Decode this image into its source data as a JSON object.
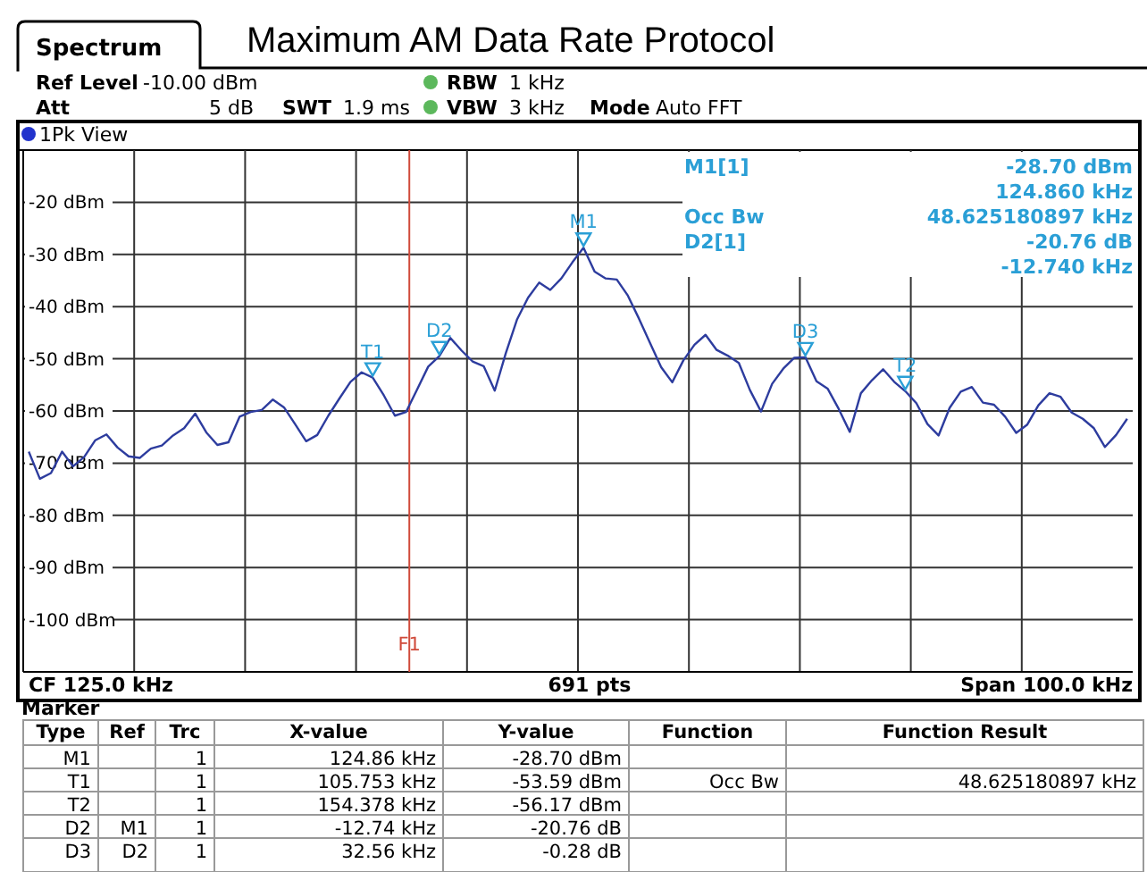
{
  "chart_data": {
    "type": "line",
    "title": "Maximum AM Data Rate Protocol",
    "categories": [
      null,
      null,
      null,
      null,
      null,
      null,
      null,
      null,
      null,
      null,
      null,
      null,
      null,
      null,
      null,
      null,
      null,
      null,
      null,
      null,
      null,
      null,
      null,
      null,
      null,
      null,
      null,
      null,
      null,
      null,
      null,
      null,
      null,
      null,
      null,
      null,
      null,
      null,
      null,
      null,
      null,
      null,
      null,
      null,
      null,
      null,
      null,
      null,
      null,
      null,
      null,
      null,
      null,
      null,
      null,
      null,
      null,
      null,
      null,
      null,
      null,
      null,
      null,
      null,
      null,
      null,
      null,
      null,
      null,
      null,
      null,
      null,
      null,
      null,
      null,
      null,
      null,
      null,
      null,
      null,
      null,
      null,
      null,
      null,
      null,
      null,
      null,
      null,
      null,
      null,
      null,
      null,
      null,
      null,
      null,
      null,
      null,
      null,
      null,
      null
    ],
    "series": [
      {
        "color": "#2d3c9e",
        "values": [
          -67.8,
          -73.0,
          -71.9,
          -67.8,
          -70.6,
          -68.8,
          -65.6,
          -64.5,
          -67.0,
          -68.7,
          -69.0,
          -67.2,
          -66.6,
          -64.7,
          -63.3,
          -60.5,
          -64.1,
          -66.5,
          -66.0,
          -61.1,
          -60.2,
          -59.8,
          -57.8,
          -59.3,
          -62.5,
          -65.8,
          -64.6,
          -60.9,
          -57.6,
          -54.4,
          -52.6,
          -53.6,
          -57.0,
          -60.9,
          -60.2,
          -55.9,
          -51.5,
          -49.5,
          -46.0,
          -48.4,
          -50.5,
          -51.4,
          -56.1,
          -48.9,
          -42.5,
          -38.3,
          -35.4,
          -36.8,
          -34.6,
          -31.5,
          -28.7,
          -33.3,
          -34.6,
          -34.8,
          -37.9,
          -42.3,
          -47.0,
          -51.6,
          -54.5,
          -50.3,
          -47.3,
          -45.4,
          -48.3,
          -49.4,
          -50.8,
          -56.0,
          -60.1,
          -54.8,
          -51.9,
          -49.8,
          -49.7,
          -54.3,
          -55.7,
          -59.6,
          -64.0,
          -56.6,
          -54.1,
          -52.0,
          -54.4,
          -56.2,
          -58.5,
          -62.5,
          -64.7,
          -59.4,
          -56.3,
          -55.4,
          -58.4,
          -58.8,
          -61.1,
          -64.2,
          -62.6,
          -58.9,
          -56.6,
          -57.3,
          -60.3,
          -61.5,
          -63.3,
          -66.9,
          -64.6,
          -61.5
        ]
      }
    ],
    "ylim": [
      -110,
      -10
    ],
    "yticks": [
      {
        "value": -20,
        "label": "-20 dBm"
      },
      {
        "value": -30,
        "label": "-30 dBm"
      },
      {
        "value": -40,
        "label": "-40 dBm"
      },
      {
        "value": -50,
        "label": "-50 dBm"
      },
      {
        "value": -60,
        "label": "-60 dBm"
      },
      {
        "value": -70,
        "label": "-70 dBm"
      },
      {
        "value": -80,
        "label": "-80 dBm"
      },
      {
        "value": -90,
        "label": "-90 dBm"
      },
      {
        "value": -100,
        "label": "-100 dBm"
      }
    ],
    "grid": true,
    "line_style": "solid",
    "annotations": [
      "Spectrum",
      "Ref Level",
      "-10.00 dBm",
      "RBW",
      "1 kHz",
      "Att",
      "5 dB",
      "SWT",
      "1.9 ms",
      "VBW",
      "3 kHz",
      "Mode",
      "Auto FFT",
      "1Pk View",
      "M1[1]",
      "-28.70 dBm",
      "124.860 kHz",
      "Occ Bw",
      "48.625180897 kHz",
      "D2[1]",
      "-20.76 dB",
      "-12.740 kHz",
      "CF 125.0 kHz",
      "691 pts",
      "Span 100.0 kHz",
      "Marker",
      "Type",
      "Ref",
      "Trc",
      "X-value",
      "Y-value",
      "Function",
      "Function Result",
      "M1",
      "1",
      "124.86 kHz",
      "-28.70 dBm",
      "T1",
      "1",
      "105.753 kHz",
      "-53.59 dBm",
      "Occ Bw",
      "48.625180897 kHz",
      "T2",
      "1",
      "154.378 kHz",
      "-56.17 dBm",
      "D2",
      "M1",
      "1",
      "-12.74 kHz",
      "-20.76 dB",
      "D3",
      "D2",
      "1",
      "32.56 kHz",
      "-0.28 dB",
      "F1",
      {
        "text": "M1",
        "y": -28.7
      },
      {
        "text": "T1",
        "y": -53.6
      },
      {
        "text": "T2",
        "y": -56.2
      },
      {
        "text": "D2",
        "y": -49.5
      },
      {
        "text": "D3",
        "y": -49.7
      }
    ]
  }
}
